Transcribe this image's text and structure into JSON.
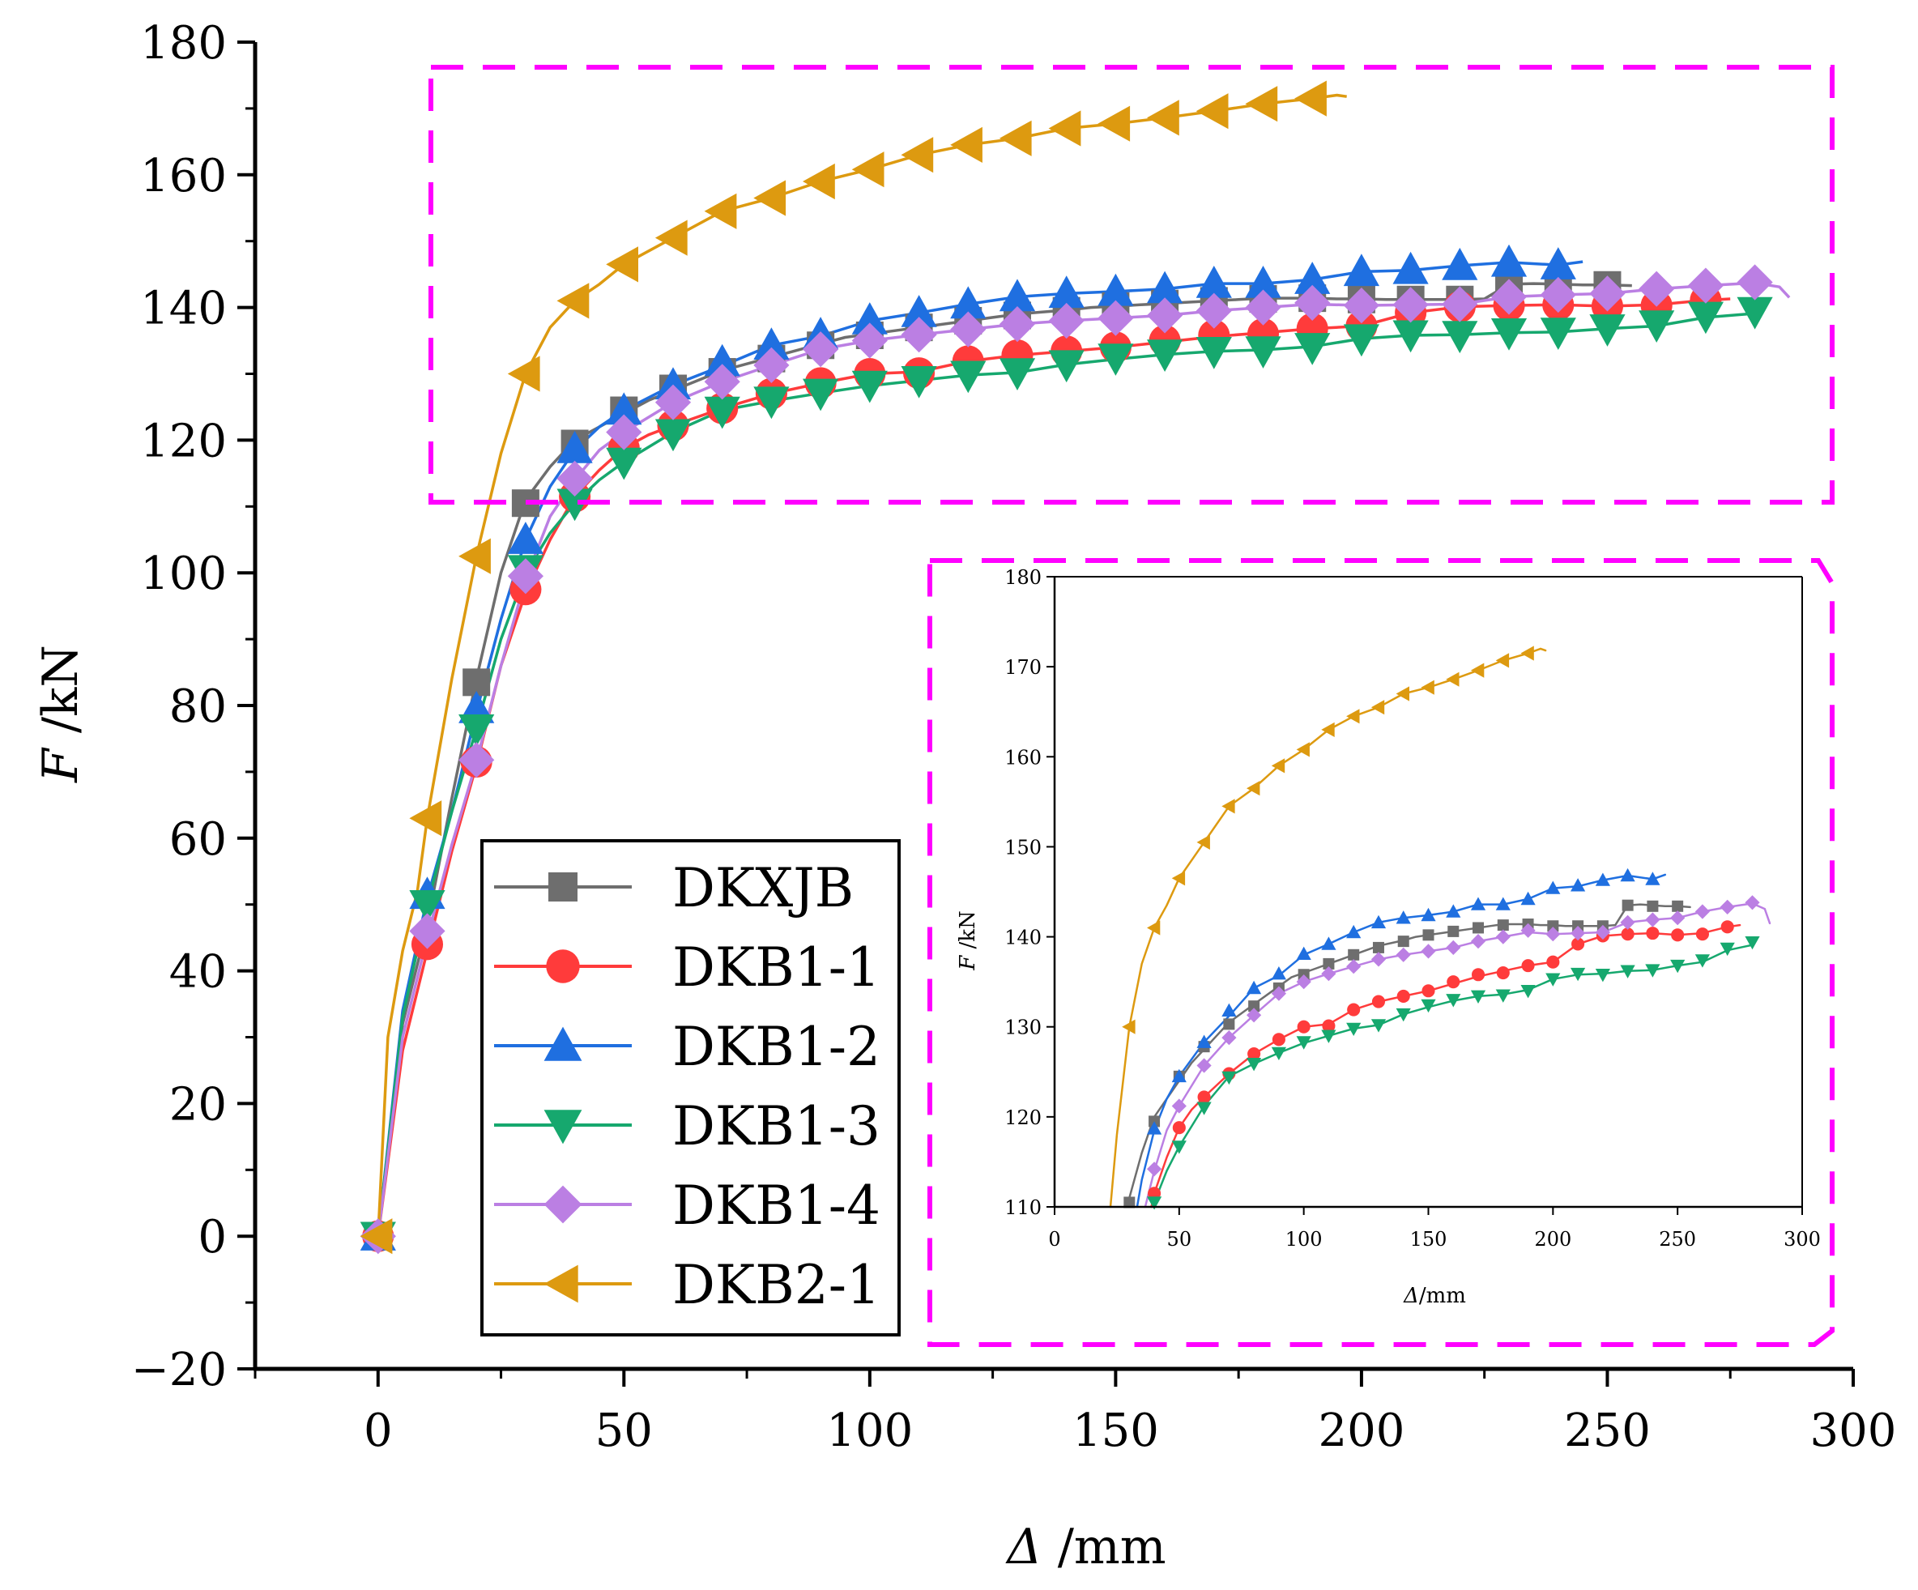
{
  "chart_data": [
    {
      "type": "line",
      "xlabel_symbol": "Δ",
      "xlabel_unit": " /mm",
      "ylabel_symbol": "F",
      "ylabel_unit": " /kN",
      "xlim": [
        -25,
        300
      ],
      "ylim": [
        -20,
        180
      ],
      "x_ticks": [
        0,
        50,
        100,
        150,
        200,
        250,
        300
      ],
      "y_ticks": [
        -20,
        0,
        20,
        40,
        60,
        80,
        100,
        120,
        140,
        160,
        180
      ],
      "grid": false,
      "legend_position": "bottom-center",
      "series": [
        {
          "name": "DKXJB",
          "color": "#6e6e6e",
          "marker": "square",
          "x": [
            0,
            5,
            10,
            15,
            20,
            25,
            30,
            35,
            40,
            45,
            50,
            55,
            60,
            65,
            70,
            75,
            80,
            85,
            90,
            95,
            100,
            105,
            110,
            115,
            120,
            125,
            130,
            135,
            140,
            145,
            150,
            155,
            160,
            165,
            170,
            175,
            180,
            185,
            190,
            195,
            200,
            205,
            210,
            215,
            220,
            225,
            230,
            235,
            240,
            245,
            250,
            255
          ],
          "y": [
            0,
            32,
            47,
            66,
            84,
            100,
            111,
            116,
            120,
            122,
            124,
            126,
            127.5,
            129,
            130.5,
            131.5,
            132.5,
            133.5,
            134.5,
            135.5,
            136,
            136.5,
            137,
            137.5,
            138,
            138.5,
            139,
            139.3,
            139.6,
            140,
            140.2,
            140.4,
            140.6,
            140.8,
            141,
            141.2,
            141.4,
            141.4,
            141.4,
            141.3,
            141.3,
            141.2,
            141.2,
            141.2,
            141.2,
            141.3,
            143.5,
            143.6,
            143.5,
            143.4,
            143.4,
            143.3
          ],
          "markers_x": [
            0,
            20,
            30,
            40,
            50,
            60,
            70,
            80,
            90,
            100,
            110,
            120,
            130,
            140,
            150,
            160,
            170,
            180,
            190,
            200,
            210,
            220,
            230,
            240,
            250
          ],
          "markers_y": [
            0,
            83.5,
            110.5,
            119.5,
            124.5,
            127.8,
            130.3,
            132.3,
            134.3,
            135.8,
            137,
            138,
            138.8,
            139.5,
            140.2,
            140.6,
            141,
            141.3,
            141.4,
            141.2,
            141.2,
            141.2,
            143.5,
            143.4,
            143.4
          ]
        },
        {
          "name": "DKB1-1",
          "color": "#ff3b3b",
          "marker": "circle",
          "x": [
            0,
            5,
            10,
            15,
            20,
            25,
            30,
            35,
            40,
            45,
            50,
            55,
            60,
            70,
            80,
            90,
            100,
            110,
            120,
            130,
            140,
            150,
            160,
            170,
            180,
            190,
            200,
            210,
            220,
            230,
            240,
            250,
            260,
            270,
            275
          ],
          "y": [
            0,
            28,
            43,
            58,
            71,
            86,
            97,
            105,
            111.5,
            115.5,
            118.8,
            120.8,
            122.2,
            124.8,
            127,
            128.6,
            130,
            130.3,
            131.9,
            132.8,
            133.4,
            134,
            134.8,
            135.6,
            136.2,
            136.8,
            137.2,
            139.2,
            140.1,
            140.3,
            140.4,
            140.2,
            140.4,
            141.1,
            141.3
          ],
          "markers_x": [
            0,
            10,
            20,
            30,
            40,
            50,
            60,
            70,
            80,
            90,
            100,
            110,
            120,
            130,
            140,
            150,
            160,
            170,
            180,
            190,
            200,
            210,
            220,
            230,
            240,
            250,
            260,
            270
          ],
          "markers_y": [
            0,
            44,
            71.5,
            97.5,
            111.5,
            118.8,
            122.2,
            124.8,
            127,
            128.6,
            130,
            130.1,
            131.9,
            132.8,
            133.4,
            134,
            135,
            135.8,
            136,
            136.8,
            137.2,
            139.2,
            140.1,
            140.3,
            140.4,
            140.2,
            140.3,
            141.1
          ]
        },
        {
          "name": "DKB1-2",
          "color": "#1f6fe0",
          "marker": "triangle-up",
          "x": [
            0,
            5,
            10,
            15,
            20,
            25,
            30,
            35,
            40,
            45,
            50,
            60,
            70,
            80,
            90,
            100,
            110,
            120,
            130,
            140,
            150,
            160,
            170,
            180,
            190,
            200,
            210,
            220,
            230,
            240,
            245
          ],
          "y": [
            0,
            34,
            51,
            64,
            79,
            93,
            105,
            113,
            118.5,
            122,
            124.5,
            128.3,
            131.2,
            134.3,
            135.7,
            138,
            139.2,
            140.5,
            141.6,
            142.1,
            142.4,
            142.8,
            143.6,
            143.6,
            144.2,
            145.4,
            145.6,
            146.3,
            146.8,
            146.4,
            146.9
          ],
          "markers_x": [
            0,
            10,
            20,
            30,
            40,
            50,
            60,
            70,
            80,
            90,
            100,
            110,
            120,
            130,
            140,
            150,
            160,
            170,
            180,
            190,
            200,
            210,
            220,
            230,
            240
          ],
          "markers_y": [
            0,
            51.5,
            79.5,
            105,
            118.7,
            124.5,
            128.3,
            131.8,
            134.3,
            135.9,
            138.1,
            139.2,
            140.5,
            141.6,
            142.1,
            142.4,
            142.8,
            143.6,
            143.6,
            144.2,
            145.4,
            145.7,
            146.3,
            146.8,
            146.4
          ]
        },
        {
          "name": "DKB1-3",
          "color": "#16a86e",
          "marker": "triangle-down",
          "x": [
            0,
            5,
            10,
            15,
            20,
            25,
            30,
            35,
            40,
            45,
            50,
            60,
            70,
            80,
            90,
            100,
            110,
            120,
            130,
            140,
            150,
            160,
            170,
            180,
            190,
            200,
            210,
            220,
            230,
            240,
            250,
            260,
            270,
            280
          ],
          "y": [
            0,
            33,
            50,
            64,
            76.5,
            90,
            100,
            106,
            110.5,
            114,
            116.7,
            121.2,
            124.5,
            125.9,
            127.1,
            128.2,
            129,
            129.8,
            130.2,
            131.4,
            132.2,
            132.9,
            133.4,
            133.6,
            134.1,
            135.3,
            135.8,
            135.9,
            136.2,
            136.3,
            136.8,
            137.2,
            138.5,
            139.1
          ],
          "markers_x": [
            0,
            10,
            20,
            30,
            40,
            50,
            60,
            70,
            80,
            90,
            100,
            110,
            120,
            130,
            140,
            150,
            160,
            170,
            180,
            190,
            200,
            210,
            220,
            230,
            240,
            250,
            260,
            270,
            280
          ],
          "markers_y": [
            0,
            50,
            76.5,
            100.5,
            110.5,
            116.7,
            121,
            124.4,
            125.9,
            127.1,
            128.3,
            129,
            129.8,
            130.2,
            131.4,
            132.4,
            133,
            133.4,
            133.5,
            134,
            135.3,
            135.9,
            135.8,
            136.2,
            136.3,
            136.8,
            137.4,
            138.7,
            139.4
          ]
        },
        {
          "name": "DKB1-4",
          "color": "#bb7fe3",
          "marker": "diamond",
          "x": [
            0,
            5,
            10,
            15,
            20,
            25,
            30,
            35,
            40,
            45,
            50,
            60,
            70,
            80,
            90,
            100,
            110,
            120,
            130,
            140,
            150,
            160,
            170,
            180,
            190,
            200,
            210,
            220,
            230,
            240,
            250,
            260,
            270,
            280,
            285,
            287
          ],
          "y": [
            0,
            30,
            45,
            59,
            71.5,
            86,
            99,
            108.5,
            114,
            118.5,
            121.2,
            125.7,
            128.8,
            131.3,
            133.7,
            135,
            135.9,
            136.7,
            137.5,
            138,
            138.4,
            138.8,
            139.5,
            140,
            140.5,
            140.3,
            140.4,
            140.5,
            141.6,
            141.9,
            142.1,
            142.8,
            143.3,
            143.7,
            143.1,
            141.5
          ],
          "markers_x": [
            0,
            10,
            20,
            30,
            40,
            50,
            60,
            70,
            80,
            90,
            100,
            110,
            120,
            130,
            140,
            150,
            160,
            170,
            180,
            190,
            200,
            210,
            220,
            230,
            240,
            250,
            260,
            270,
            280
          ],
          "markers_y": [
            0,
            46,
            71.8,
            99.5,
            114.2,
            121.2,
            125.7,
            128.8,
            131.3,
            133.7,
            135,
            135.9,
            136.7,
            137.5,
            138,
            138.4,
            138.8,
            139.5,
            140,
            140.7,
            140.3,
            140.4,
            140.5,
            141.6,
            141.9,
            142.1,
            142.8,
            143.3,
            143.8
          ]
        },
        {
          "name": "DKB2-1",
          "color": "#dd9a10",
          "marker": "triangle-left",
          "x": [
            0,
            2,
            5,
            8,
            10,
            15,
            20,
            25,
            30,
            35,
            40,
            45,
            50,
            60,
            70,
            80,
            90,
            100,
            110,
            120,
            130,
            140,
            150,
            160,
            170,
            180,
            190,
            195,
            197
          ],
          "y": [
            0,
            30,
            43,
            52,
            63,
            84,
            102.5,
            118,
            130,
            137,
            141,
            143.5,
            146.5,
            150.5,
            154.5,
            156.5,
            159,
            160.8,
            163,
            164.5,
            165.5,
            167,
            167.7,
            168.6,
            169.6,
            170.7,
            171.5,
            172,
            171.8
          ],
          "markers_x": [
            0,
            10,
            20,
            30,
            40,
            50,
            60,
            70,
            80,
            90,
            100,
            110,
            120,
            130,
            140,
            150,
            160,
            170,
            180,
            190
          ],
          "markers_y": [
            0,
            63,
            102.5,
            130,
            141,
            146.5,
            150.5,
            154.5,
            156.5,
            159,
            160.8,
            163,
            164.5,
            165.5,
            167,
            167.7,
            168.6,
            169.6,
            170.7,
            171.5
          ]
        }
      ]
    },
    {
      "type": "line",
      "role": "inset",
      "xlabel_symbol": "Δ",
      "xlabel_unit": "/mm",
      "ylabel_symbol": "F",
      "ylabel_unit": " /kN",
      "xlim": [
        0,
        300
      ],
      "ylim": [
        110,
        180
      ],
      "x_ticks": [
        0,
        50,
        100,
        150,
        200,
        250,
        300
      ],
      "y_ticks": [
        110,
        120,
        130,
        140,
        150,
        160,
        170,
        180
      ],
      "grid": false,
      "series_source": "same series as main chart, zoomed to F ≥ 110 kN"
    }
  ]
}
